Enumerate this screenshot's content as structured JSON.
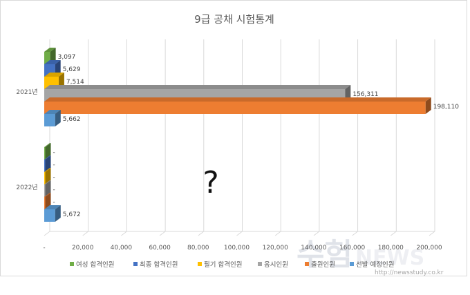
{
  "chart_data": {
    "type": "bar",
    "orientation": "horizontal",
    "style": "3d-clustered",
    "title": "9급 공채 시험통계",
    "xlabel": "",
    "ylabel": "",
    "xlim": [
      0,
      200000
    ],
    "x_ticks": [
      "-",
      "20,000",
      "40,000",
      "60,000",
      "80,000",
      "100,000",
      "120,000",
      "140,000",
      "160,000",
      "180,000",
      "200,000"
    ],
    "grid": true,
    "legend_position": "bottom",
    "categories": [
      "2021년",
      "2022년"
    ],
    "series": [
      {
        "name": "여성 합격인원",
        "color": "#70ad47",
        "values": [
          3097,
          null
        ],
        "labels": [
          "3,097",
          ""
        ]
      },
      {
        "name": "최종 합격인원",
        "color": "#4472c4",
        "values": [
          5629,
          null
        ],
        "labels": [
          "5,629",
          ""
        ]
      },
      {
        "name": "필기 합격인원",
        "color": "#ffc000",
        "values": [
          7514,
          null
        ],
        "labels": [
          "7,514",
          ""
        ]
      },
      {
        "name": "응시인원",
        "color": "#a5a5a5",
        "values": [
          156311,
          null
        ],
        "labels": [
          "156,311",
          ""
        ]
      },
      {
        "name": "출원인원",
        "color": "#ed7d31",
        "values": [
          198110,
          null
        ],
        "labels": [
          "198,110",
          ""
        ]
      },
      {
        "name": "선발 예정인원",
        "color": "#5b9bd5",
        "values": [
          5662,
          5672
        ],
        "labels": [
          "5,662",
          "5,672"
        ]
      }
    ],
    "annotation": "?"
  },
  "watermark": {
    "text": "수험NEWS",
    "url": "http://newsstudy.co.kr"
  }
}
